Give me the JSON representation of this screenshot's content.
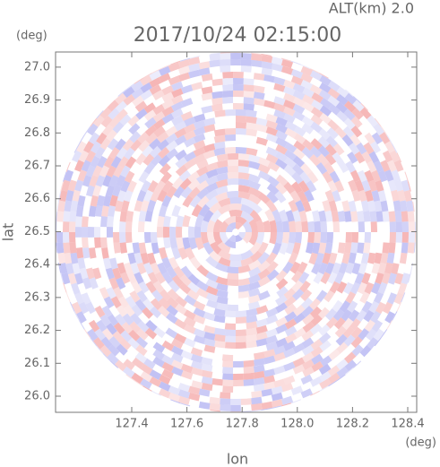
{
  "chart_data": {
    "type": "ppi",
    "title": "2017/10/24 02:15:00",
    "subtitle": "ALT(km) 2.0",
    "x_label": "lon",
    "y_label": "lat",
    "x_unit": "(deg)",
    "y_unit": "(deg)",
    "xlim": [
      127.124,
      128.4325
    ],
    "ylim": [
      25.951,
      27.046
    ],
    "xticks": [
      127.4,
      127.6,
      127.8,
      {
        "value": 128.0,
        "label": "128.0"
      },
      128.2,
      128.4
    ],
    "yticks": [
      {
        "value": 26.0,
        "label": "26.0"
      },
      26.1,
      26.2,
      26.3,
      26.4,
      26.5,
      26.6,
      26.7,
      26.8,
      26.9,
      {
        "value": 27.0,
        "label": "27.0"
      }
    ],
    "colors": [
      "#f4a8a8",
      "#b4b4f2"
    ]
  }
}
